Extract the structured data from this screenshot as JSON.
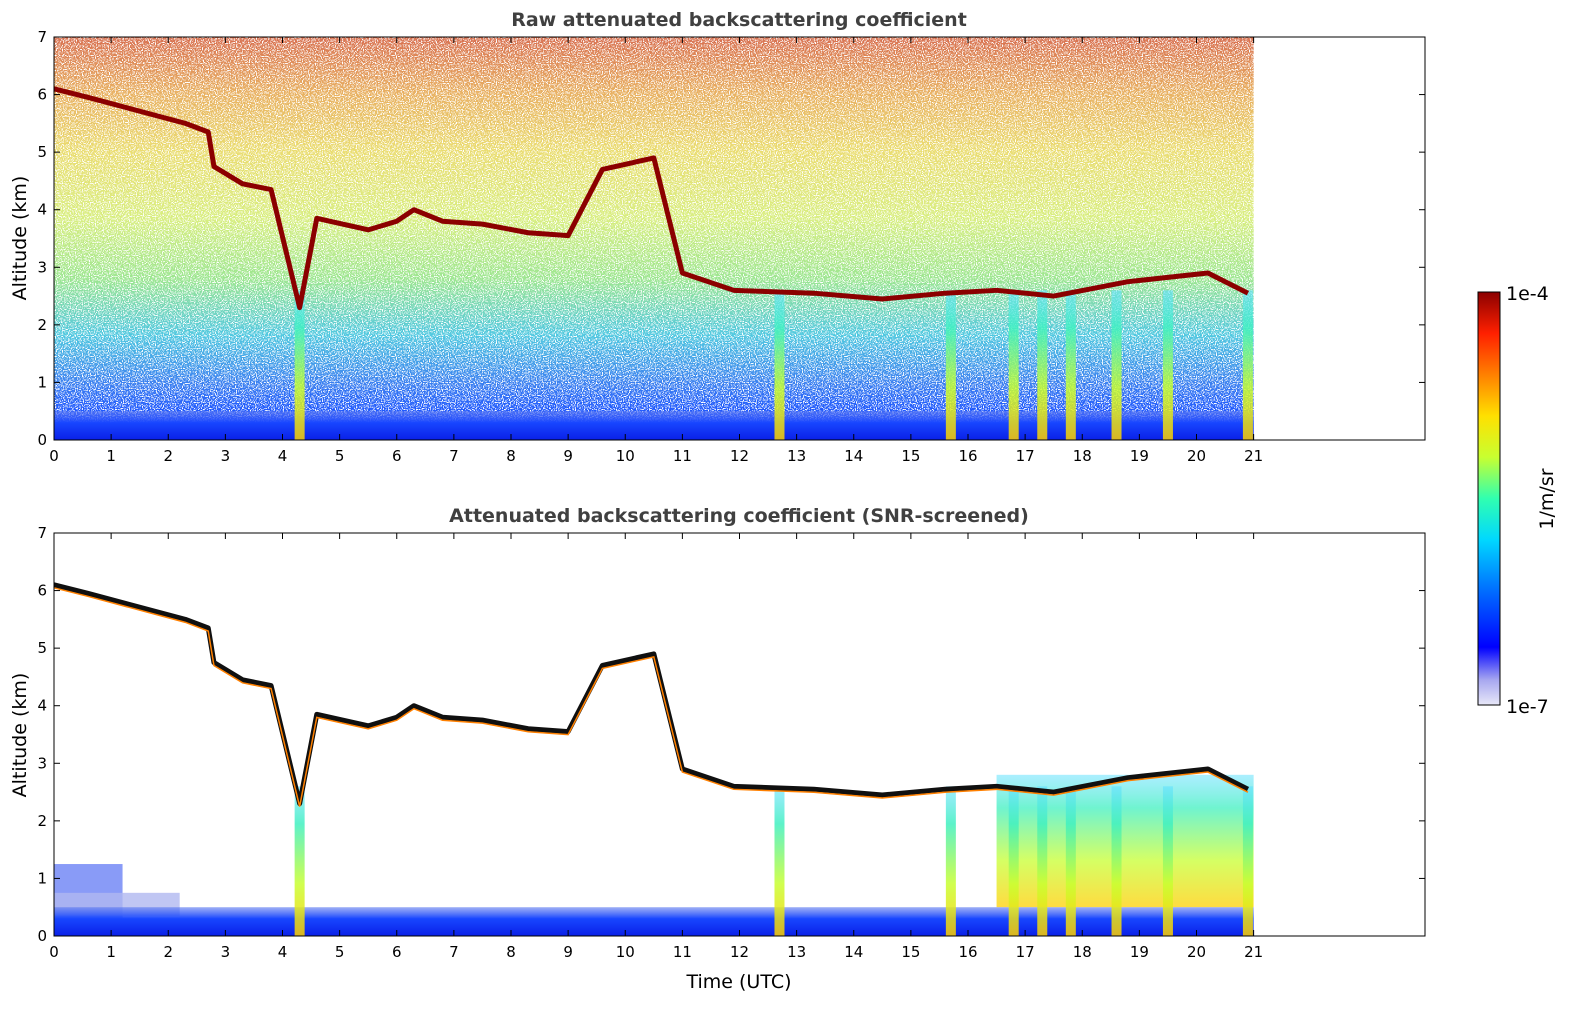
{
  "colorbar": {
    "max_label": "1e-4",
    "min_label": "1e-7",
    "unit_label": "1/m/sr",
    "scale": "log",
    "colormap": [
      "#e8e8f8",
      "#a8a8f0",
      "#0000ff",
      "#0070ff",
      "#00d8ff",
      "#30ffb0",
      "#c8ff30",
      "#ffe000",
      "#ff8000",
      "#ff2000",
      "#8b0000"
    ]
  },
  "chart_data": [
    {
      "type": "heatmap",
      "title": "Raw attenuated backscattering coefficient",
      "xlabel": "",
      "ylabel": "Altitude (km)",
      "xlim": [
        0,
        24
      ],
      "ylim": [
        0,
        7
      ],
      "x_ticks": [
        0,
        1,
        2,
        3,
        4,
        5,
        6,
        7,
        8,
        9,
        10,
        11,
        12,
        13,
        14,
        15,
        16,
        17,
        18,
        19,
        20,
        21
      ],
      "y_ticks": [
        0,
        1,
        2,
        3,
        4,
        5,
        6,
        7
      ],
      "data_extent_hours": [
        0,
        21
      ],
      "cloud_base_track": [
        [
          0,
          6.1
        ],
        [
          0.6,
          5.95
        ],
        [
          2.3,
          5.5
        ],
        [
          2.7,
          5.35
        ],
        [
          2.8,
          4.75
        ],
        [
          3.3,
          4.45
        ],
        [
          3.8,
          4.35
        ],
        [
          4.3,
          2.3
        ],
        [
          4.6,
          3.85
        ],
        [
          5.5,
          3.65
        ],
        [
          6.0,
          3.8
        ],
        [
          6.3,
          4.0
        ],
        [
          6.8,
          3.8
        ],
        [
          7.5,
          3.75
        ],
        [
          8.3,
          3.6
        ],
        [
          9.0,
          3.55
        ],
        [
          9.6,
          4.7
        ],
        [
          10.5,
          4.9
        ],
        [
          11.0,
          2.9
        ],
        [
          11.9,
          2.6
        ],
        [
          13.3,
          2.55
        ],
        [
          14.5,
          2.45
        ],
        [
          15.6,
          2.55
        ],
        [
          16.5,
          2.6
        ],
        [
          17.5,
          2.5
        ],
        [
          18.8,
          2.75
        ],
        [
          20.2,
          2.9
        ],
        [
          20.9,
          2.55
        ]
      ],
      "boundary_layer_top_km": 0.5,
      "vertical_features_hours": [
        4.3,
        12.7,
        15.7,
        16.8,
        17.3,
        17.8,
        18.6,
        19.5,
        20.9
      ]
    },
    {
      "type": "heatmap",
      "title": "Attenuated backscattering coefficient (SNR-screened)",
      "xlabel": "Time (UTC)",
      "ylabel": "Altitude (km)",
      "xlim": [
        0,
        24
      ],
      "ylim": [
        0,
        7
      ],
      "x_ticks": [
        0,
        1,
        2,
        3,
        4,
        5,
        6,
        7,
        8,
        9,
        10,
        11,
        12,
        13,
        14,
        15,
        16,
        17,
        18,
        19,
        20,
        21
      ],
      "y_ticks": [
        0,
        1,
        2,
        3,
        4,
        5,
        6,
        7
      ],
      "data_extent_hours": [
        0,
        21
      ],
      "cloud_base_track": [
        [
          0,
          6.1
        ],
        [
          0.6,
          5.95
        ],
        [
          2.3,
          5.5
        ],
        [
          2.7,
          5.35
        ],
        [
          2.8,
          4.75
        ],
        [
          3.3,
          4.45
        ],
        [
          3.8,
          4.35
        ],
        [
          4.3,
          2.3
        ],
        [
          4.6,
          3.85
        ],
        [
          5.5,
          3.65
        ],
        [
          6.0,
          3.8
        ],
        [
          6.3,
          4.0
        ],
        [
          6.8,
          3.8
        ],
        [
          7.5,
          3.75
        ],
        [
          8.3,
          3.6
        ],
        [
          9.0,
          3.55
        ],
        [
          9.6,
          4.7
        ],
        [
          10.5,
          4.9
        ],
        [
          11.0,
          2.9
        ],
        [
          11.9,
          2.6
        ],
        [
          13.3,
          2.55
        ],
        [
          14.5,
          2.45
        ],
        [
          15.6,
          2.55
        ],
        [
          16.5,
          2.6
        ],
        [
          17.5,
          2.5
        ],
        [
          18.8,
          2.75
        ],
        [
          20.2,
          2.9
        ],
        [
          20.9,
          2.55
        ]
      ],
      "boundary_layer_top_km": 0.5,
      "vertical_features_hours": [
        4.3,
        12.7,
        15.7,
        16.8,
        17.3,
        17.8,
        18.6,
        19.5,
        20.9
      ]
    }
  ]
}
